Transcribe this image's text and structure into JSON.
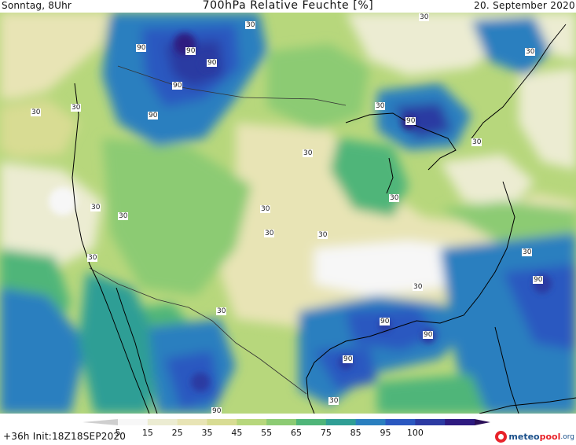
{
  "header": {
    "left": "Sonntag, 8Uhr",
    "title": "700hPa Relative Feuchte [%]",
    "right": "20. September 2020"
  },
  "footer": {
    "run_info": "+36h  Init:18Z18SEP2020",
    "logo": {
      "part1": "meteo",
      "part2": "pool",
      "part3": ".org"
    }
  },
  "colorbar": {
    "labels": [
      "5",
      "15",
      "25",
      "35",
      "45",
      "55",
      "65",
      "75",
      "85",
      "95",
      "100"
    ],
    "colors": [
      "#f7f7f7",
      "#ececd2",
      "#e8e4b5",
      "#d8dc93",
      "#b7d77c",
      "#8ccb73",
      "#4fb579",
      "#2f9e95",
      "#2a7fbf",
      "#2a58c0",
      "#2c3aa2",
      "#2e1a80",
      "#2a0f57"
    ]
  },
  "contour_labels": [
    {
      "text": "90"
    },
    {
      "text": "90"
    },
    {
      "text": "90"
    },
    {
      "text": "90"
    },
    {
      "text": "90"
    },
    {
      "text": "90"
    },
    {
      "text": "90"
    },
    {
      "text": "90"
    },
    {
      "text": "90"
    },
    {
      "text": "90"
    },
    {
      "text": "90"
    },
    {
      "text": "30"
    },
    {
      "text": "30"
    },
    {
      "text": "30"
    },
    {
      "text": "30"
    },
    {
      "text": "30"
    },
    {
      "text": "30"
    },
    {
      "text": "30"
    },
    {
      "text": "30"
    },
    {
      "text": "30"
    },
    {
      "text": "30"
    },
    {
      "text": "30"
    },
    {
      "text": "30"
    },
    {
      "text": "30"
    },
    {
      "text": "30"
    },
    {
      "text": "30"
    },
    {
      "text": "30"
    },
    {
      "text": "30"
    },
    {
      "text": "30"
    },
    {
      "text": "30"
    }
  ]
}
